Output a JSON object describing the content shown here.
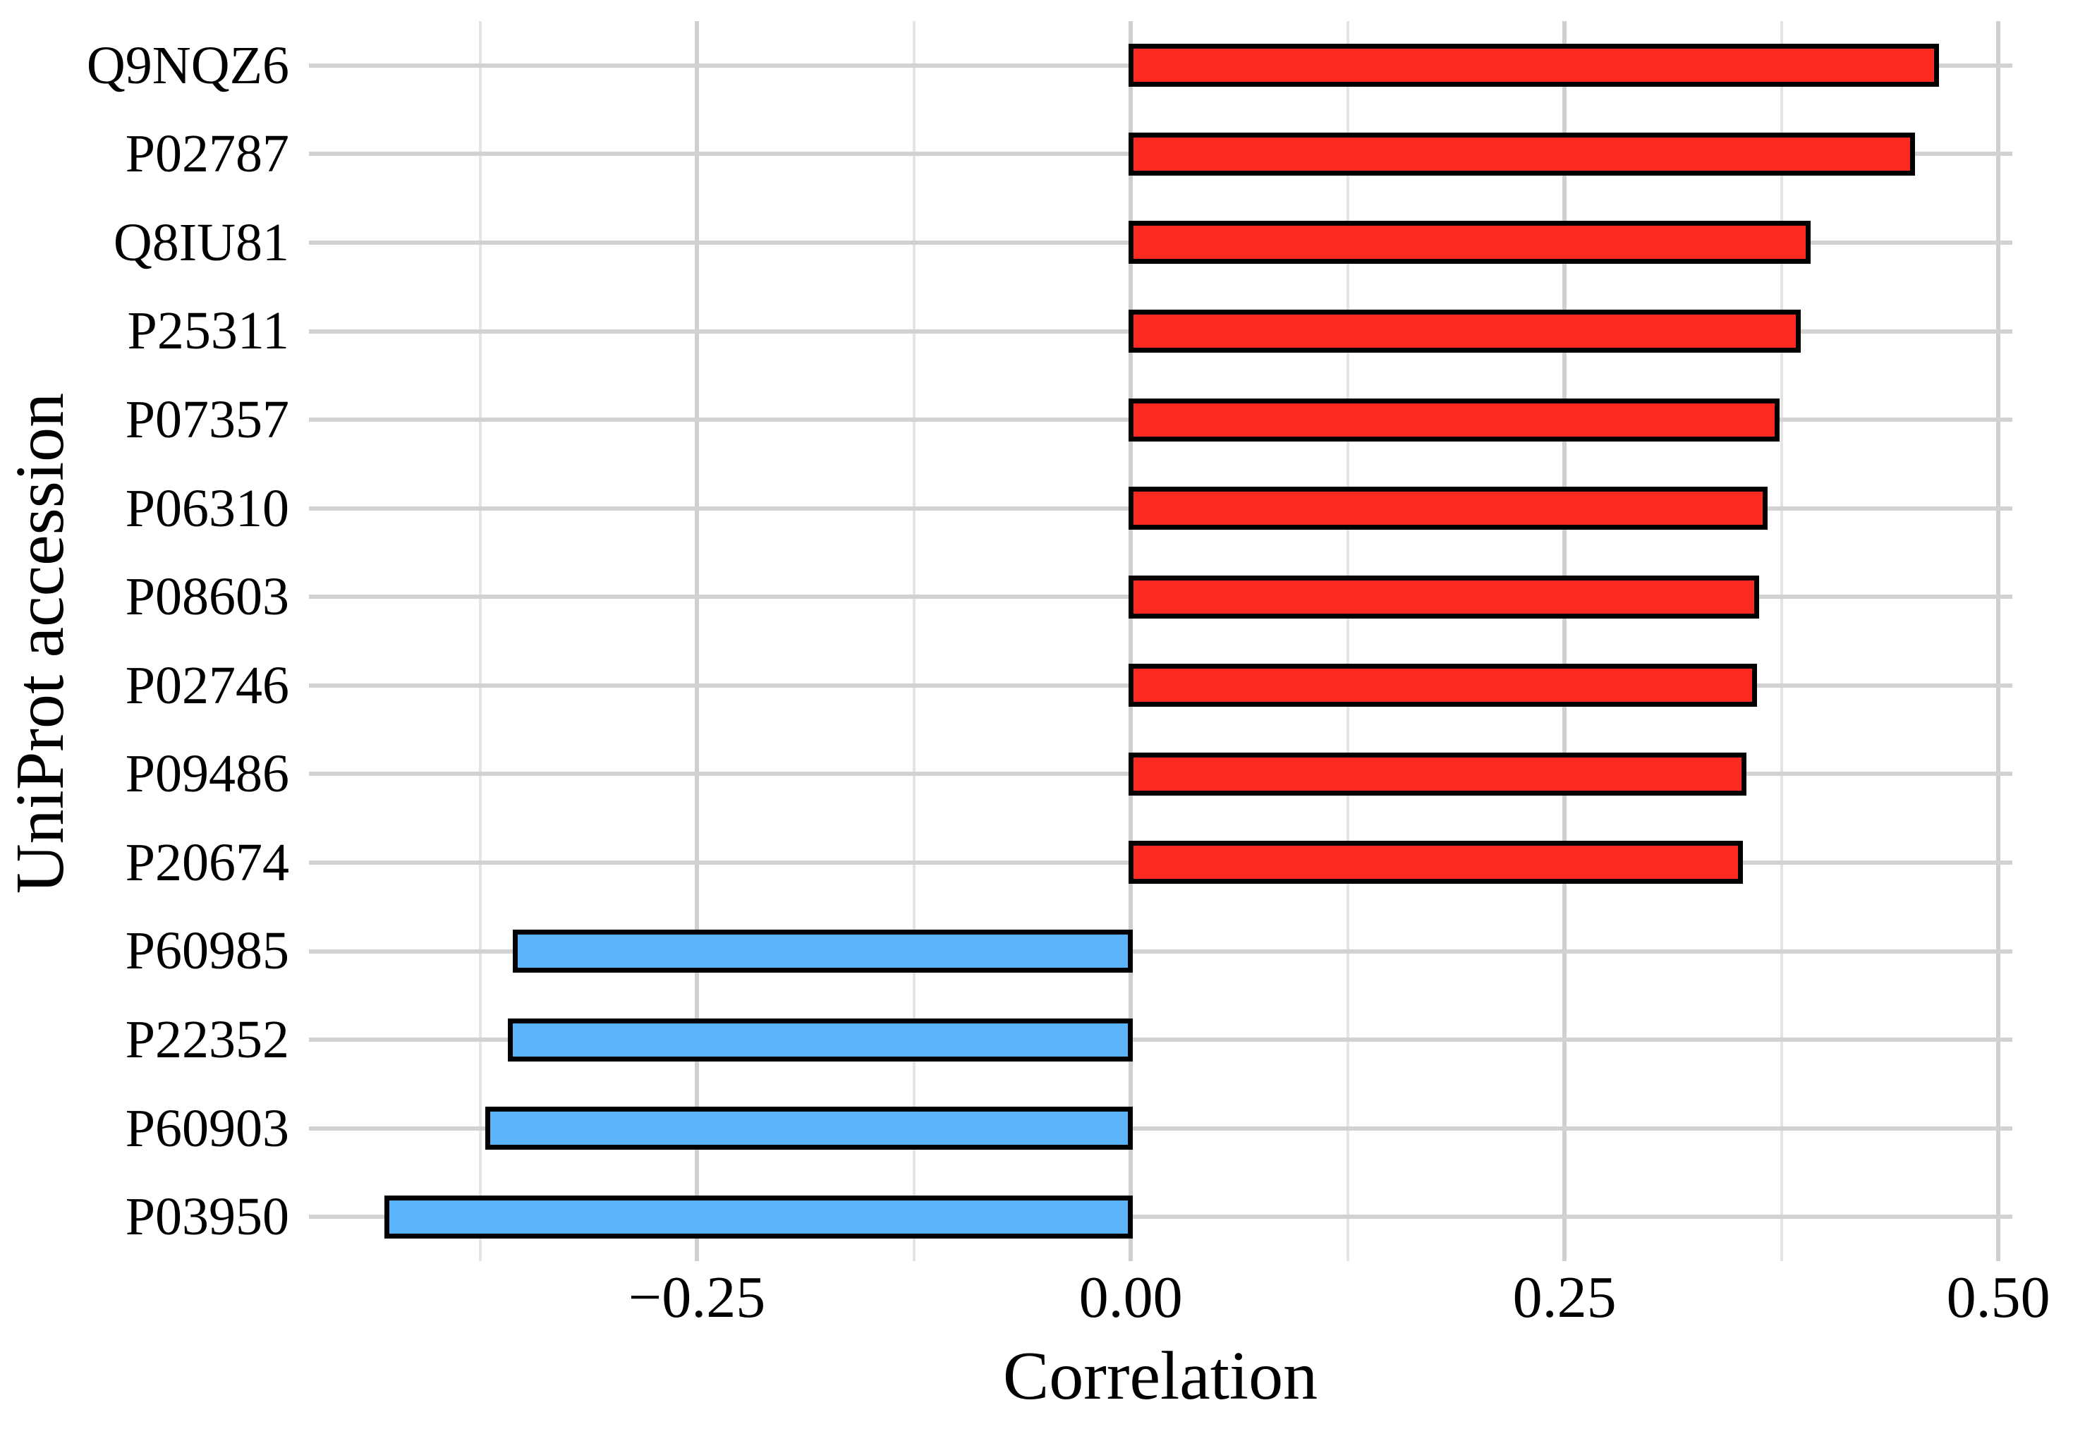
{
  "chart_data": {
    "type": "bar",
    "orientation": "horizontal",
    "title": "",
    "xlabel": "Correlation",
    "ylabel": "UniProt accession",
    "categories": [
      "Q9NQZ6",
      "P02787",
      "Q8IU81",
      "P25311",
      "P07357",
      "P06310",
      "P08603",
      "P02746",
      "P09486",
      "P20674",
      "P60985",
      "P22352",
      "P60903",
      "P03950"
    ],
    "values": [
      0.466,
      0.452,
      0.392,
      0.386,
      0.374,
      0.367,
      0.362,
      0.361,
      0.355,
      0.353,
      -0.356,
      -0.359,
      -0.372,
      -0.43
    ],
    "positive_bar_color": "#fc2a21",
    "negative_bar_color": "#5bb3f9",
    "bar_border_color": "#000000",
    "xlim": [
      -0.4736,
      0.5081
    ],
    "x_major_ticks": [
      -0.25,
      0.0,
      0.25,
      0.5
    ],
    "x_tick_labels": [
      "−0.25",
      "0.00",
      "0.25",
      "0.50"
    ],
    "x_minor_gridlines": [
      -0.375,
      -0.125,
      0.125,
      0.375
    ],
    "grid": {
      "major_color": "#cfcfcf",
      "minor_color": "#e4e4e4",
      "row_color": "#d2d2d2",
      "background": "#ffffff"
    },
    "legend": "none"
  }
}
